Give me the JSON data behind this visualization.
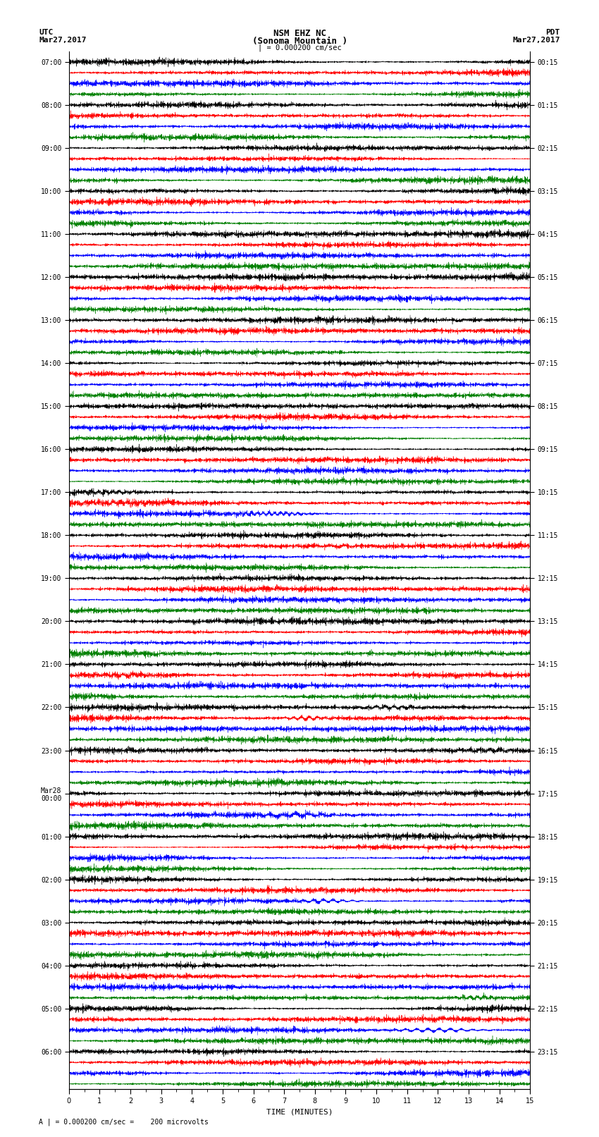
{
  "title_line1": "NSM EHZ NC",
  "title_line2": "(Sonoma Mountain )",
  "title_line3": "| = 0.000200 cm/sec",
  "utc_label": "UTC",
  "utc_date": "Mar27,2017",
  "pdt_label": "PDT",
  "pdt_date": "Mar27,2017",
  "xlabel": "TIME (MINUTES)",
  "footer": "A | = 0.000200 cm/sec =    200 microvolts",
  "left_times": [
    "07:00",
    "",
    "",
    "",
    "08:00",
    "",
    "",
    "",
    "09:00",
    "",
    "",
    "",
    "10:00",
    "",
    "",
    "",
    "11:00",
    "",
    "",
    "",
    "12:00",
    "",
    "",
    "",
    "13:00",
    "",
    "",
    "",
    "14:00",
    "",
    "",
    "",
    "15:00",
    "",
    "",
    "",
    "16:00",
    "",
    "",
    "",
    "17:00",
    "",
    "",
    "",
    "18:00",
    "",
    "",
    "",
    "19:00",
    "",
    "",
    "",
    "20:00",
    "",
    "",
    "",
    "21:00",
    "",
    "",
    "",
    "22:00",
    "",
    "",
    "",
    "23:00",
    "",
    "",
    "",
    "Mar28\n00:00",
    "",
    "",
    "",
    "01:00",
    "",
    "",
    "",
    "02:00",
    "",
    "",
    "",
    "03:00",
    "",
    "",
    "",
    "04:00",
    "",
    "",
    "",
    "05:00",
    "",
    "",
    "",
    "06:00"
  ],
  "right_times": [
    "00:15",
    "",
    "",
    "",
    "01:15",
    "",
    "",
    "",
    "02:15",
    "",
    "",
    "",
    "03:15",
    "",
    "",
    "",
    "04:15",
    "",
    "",
    "",
    "05:15",
    "",
    "",
    "",
    "06:15",
    "",
    "",
    "",
    "07:15",
    "",
    "",
    "",
    "08:15",
    "",
    "",
    "",
    "09:15",
    "",
    "",
    "",
    "10:15",
    "",
    "",
    "",
    "11:15",
    "",
    "",
    "",
    "12:15",
    "",
    "",
    "",
    "13:15",
    "",
    "",
    "",
    "14:15",
    "",
    "",
    "",
    "15:15",
    "",
    "",
    "",
    "16:15",
    "",
    "",
    "",
    "17:15",
    "",
    "",
    "",
    "18:15",
    "",
    "",
    "",
    "19:15",
    "",
    "",
    "",
    "20:15",
    "",
    "",
    "",
    "21:15",
    "",
    "",
    "",
    "22:15",
    "",
    "",
    "",
    "23:15"
  ],
  "trace_colors": [
    "black",
    "red",
    "blue",
    "green"
  ],
  "num_rows": 96,
  "minutes": 15,
  "amplitude_scale": 0.48,
  "background_color": "white",
  "trace_linewidth": 0.5,
  "xmin": 0,
  "xmax": 15
}
